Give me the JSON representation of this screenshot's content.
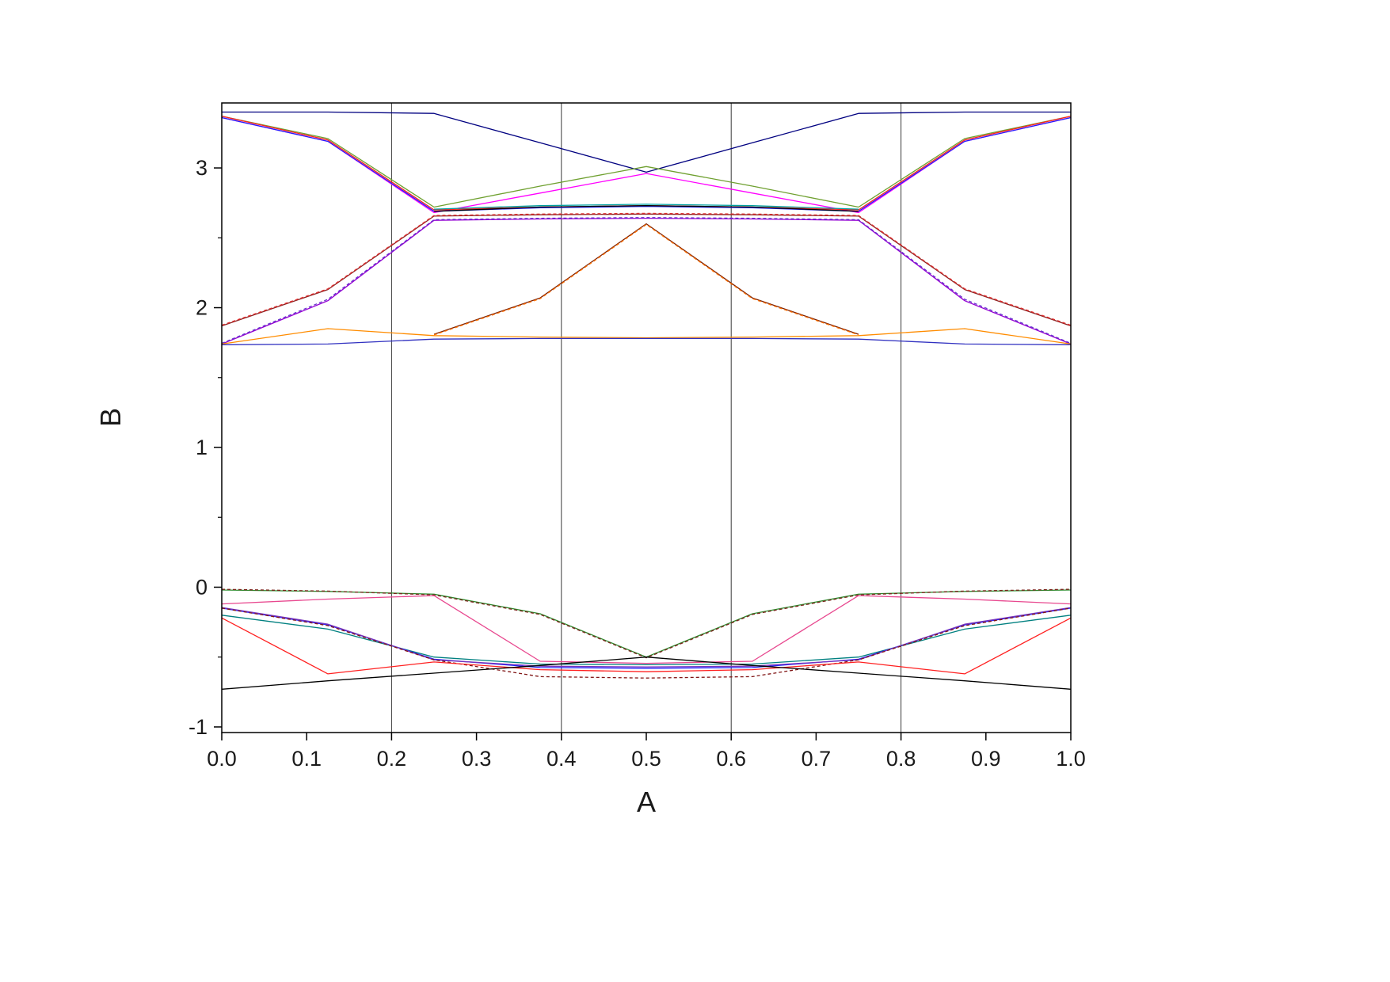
{
  "figure": {
    "background": "#ffffff"
  },
  "chart_data": {
    "type": "line",
    "title": "",
    "xlabel": "A",
    "ylabel": "B",
    "xlim": [
      0.0,
      1.0
    ],
    "ylim": [
      -1.04,
      3.465
    ],
    "x_ticks": [
      0.0,
      0.1,
      0.2,
      0.3,
      0.4,
      0.5,
      0.6,
      0.7,
      0.8,
      0.9,
      1.0
    ],
    "x_tick_labels": [
      "0.0",
      "0.1",
      "0.2",
      "0.3",
      "0.4",
      "0.5",
      "0.6",
      "0.7",
      "0.8",
      "0.9",
      "1.0"
    ],
    "y_ticks": [
      -1,
      0,
      1,
      2,
      3
    ],
    "y_tick_labels": [
      "-1",
      "0",
      "1",
      "2",
      "3"
    ],
    "y_minor_ticks": [
      -0.5,
      0.5,
      1.5,
      2.5
    ],
    "gridlines_x": [
      0.2,
      0.4,
      0.6,
      0.8
    ],
    "grid_color": "#3a3a3a",
    "frame_color": "#000000",
    "legend": "none",
    "series": [
      {
        "name": "navy-top",
        "color": "#000080",
        "dash": false,
        "x": [
          0,
          0.125,
          0.25,
          0.375,
          0.5,
          0.625,
          0.75,
          0.875,
          1
        ],
        "y": [
          3.4,
          3.4,
          3.39,
          3.18,
          2.97,
          3.18,
          3.39,
          3.4,
          3.4
        ]
      },
      {
        "name": "green-upper-peak",
        "color": "#6fa030",
        "dash": false,
        "x": [
          0,
          0.125,
          0.25,
          0.375,
          0.5,
          0.625,
          0.75,
          0.875,
          1
        ],
        "y": [
          3.37,
          3.21,
          2.72,
          2.87,
          3.01,
          2.87,
          2.72,
          3.21,
          3.37
        ]
      },
      {
        "name": "magenta-upper-peak",
        "color": "#ff00ff",
        "dash": false,
        "x": [
          0,
          0.125,
          0.25,
          0.375,
          0.5,
          0.625,
          0.75,
          0.875,
          1
        ],
        "y": [
          3.36,
          3.19,
          2.68,
          2.82,
          2.96,
          2.82,
          2.68,
          3.19,
          3.36
        ]
      },
      {
        "name": "red-upper",
        "color": "#ff2020",
        "dash": false,
        "x": [
          0,
          0.125,
          0.25,
          0.375,
          0.5,
          0.625,
          0.75,
          0.875,
          1
        ],
        "y": [
          3.37,
          3.2,
          2.7,
          2.72,
          2.73,
          2.72,
          2.7,
          3.2,
          3.37
        ]
      },
      {
        "name": "blue-upper",
        "color": "#2020ff",
        "dash": false,
        "x": [
          0,
          0.125,
          0.25,
          0.375,
          0.5,
          0.625,
          0.75,
          0.875,
          1
        ],
        "y": [
          3.36,
          3.19,
          2.69,
          2.715,
          2.725,
          2.715,
          2.69,
          3.19,
          3.36
        ]
      },
      {
        "name": "cyan-mid-arc",
        "color": "#00a0a0",
        "dash": false,
        "x": [
          0.25,
          0.375,
          0.5,
          0.625,
          0.75
        ],
        "y": [
          2.705,
          2.73,
          2.74,
          2.73,
          2.705
        ]
      },
      {
        "name": "black-mid-arc",
        "color": "#000000",
        "dash": false,
        "x": [
          0.25,
          0.375,
          0.5,
          0.625,
          0.75
        ],
        "y": [
          2.69,
          2.72,
          2.73,
          2.72,
          2.69
        ]
      },
      {
        "name": "wine-rise",
        "color": "#8b2020",
        "dash": false,
        "x": [
          0,
          0.125,
          0.25,
          0.375,
          0.5,
          0.625,
          0.75,
          0.875,
          1
        ],
        "y": [
          1.87,
          2.13,
          2.655,
          2.665,
          2.67,
          2.665,
          2.655,
          2.13,
          1.87
        ]
      },
      {
        "name": "red-rise-pair",
        "color": "#e03030",
        "dash": true,
        "x": [
          0,
          0.125,
          0.25,
          0.375,
          0.5,
          0.625,
          0.75,
          0.875,
          1
        ],
        "y": [
          1.875,
          2.135,
          2.66,
          2.67,
          2.675,
          2.67,
          2.66,
          2.135,
          1.875
        ]
      },
      {
        "name": "violet-rise",
        "color": "#9400d3",
        "dash": false,
        "x": [
          0,
          0.125,
          0.25,
          0.375,
          0.5,
          0.625,
          0.75,
          0.875,
          1
        ],
        "y": [
          1.74,
          2.05,
          2.625,
          2.635,
          2.64,
          2.635,
          2.625,
          2.05,
          1.74
        ]
      },
      {
        "name": "purple-rise-pair",
        "color": "#6633cc",
        "dash": true,
        "x": [
          0,
          0.125,
          0.25,
          0.375,
          0.5,
          0.625,
          0.75,
          0.875,
          1
        ],
        "y": [
          1.745,
          2.06,
          2.63,
          2.64,
          2.645,
          2.64,
          2.63,
          2.06,
          1.745
        ]
      },
      {
        "name": "orange-flat",
        "color": "#ff8c00",
        "dash": false,
        "x": [
          0,
          0.125,
          0.25,
          0.375,
          0.5,
          0.625,
          0.75,
          0.875,
          1
        ],
        "y": [
          1.74,
          1.85,
          1.8,
          1.79,
          1.785,
          1.79,
          1.8,
          1.85,
          1.74
        ]
      },
      {
        "name": "blue-flat",
        "color": "#3030c0",
        "dash": false,
        "x": [
          0,
          0.125,
          0.25,
          0.375,
          0.5,
          0.625,
          0.75,
          0.875,
          1
        ],
        "y": [
          1.735,
          1.74,
          1.775,
          1.78,
          1.78,
          1.78,
          1.775,
          1.74,
          1.735
        ]
      },
      {
        "name": "wine-tent",
        "color": "#7b2000",
        "dash": false,
        "x": [
          0.25,
          0.375,
          0.5,
          0.625,
          0.75
        ],
        "y": [
          1.81,
          2.07,
          2.6,
          2.07,
          1.81
        ]
      },
      {
        "name": "orange-tent-pair",
        "color": "#ff7000",
        "dash": true,
        "x": [
          0.25,
          0.375,
          0.5,
          0.625,
          0.75
        ],
        "y": [
          1.805,
          2.065,
          2.595,
          2.065,
          1.805
        ]
      },
      {
        "name": "green-v",
        "color": "#2e8b2e",
        "dash": false,
        "x": [
          0,
          0.125,
          0.25,
          0.375,
          0.5,
          0.625,
          0.75,
          0.875,
          1
        ],
        "y": [
          -0.02,
          -0.03,
          -0.05,
          -0.19,
          -0.5,
          -0.19,
          -0.05,
          -0.03,
          -0.02
        ]
      },
      {
        "name": "wine-v-pair",
        "color": "#7b241c",
        "dash": true,
        "x": [
          0,
          0.125,
          0.25,
          0.375,
          0.5,
          0.625,
          0.75,
          0.875,
          1
        ],
        "y": [
          -0.015,
          -0.028,
          -0.055,
          -0.195,
          -0.505,
          -0.195,
          -0.055,
          -0.028,
          -0.015
        ]
      },
      {
        "name": "magenta-lower",
        "color": "#e8488f",
        "dash": false,
        "x": [
          0,
          0.125,
          0.25,
          0.375,
          0.5,
          0.625,
          0.75,
          0.875,
          1
        ],
        "y": [
          -0.12,
          -0.085,
          -0.06,
          -0.53,
          -0.545,
          -0.53,
          -0.06,
          -0.085,
          -0.12
        ]
      },
      {
        "name": "teal-lower",
        "color": "#008080",
        "dash": false,
        "x": [
          0,
          0.125,
          0.25,
          0.375,
          0.5,
          0.625,
          0.75,
          0.875,
          1
        ],
        "y": [
          -0.2,
          -0.3,
          -0.5,
          -0.55,
          -0.555,
          -0.55,
          -0.5,
          -0.3,
          -0.2
        ]
      },
      {
        "name": "blue-lower",
        "color": "#2020ff",
        "dash": false,
        "x": [
          0,
          0.125,
          0.25,
          0.375,
          0.5,
          0.625,
          0.75,
          0.875,
          1
        ],
        "y": [
          -0.15,
          -0.27,
          -0.515,
          -0.575,
          -0.58,
          -0.575,
          -0.515,
          -0.27,
          -0.15
        ]
      },
      {
        "name": "purple-lower",
        "color": "#7733bb",
        "dash": false,
        "x": [
          0,
          0.125,
          0.25,
          0.375,
          0.5,
          0.625,
          0.75,
          0.875,
          1
        ],
        "y": [
          -0.145,
          -0.265,
          -0.52,
          -0.565,
          -0.57,
          -0.565,
          -0.52,
          -0.265,
          -0.145
        ]
      },
      {
        "name": "wine-band-dip",
        "color": "#801515",
        "dash": true,
        "x": [
          0,
          0.125,
          0.25,
          0.375,
          0.5,
          0.625,
          0.75,
          0.875,
          1
        ],
        "y": [
          -0.15,
          -0.275,
          -0.52,
          -0.64,
          -0.65,
          -0.64,
          -0.52,
          -0.275,
          -0.15
        ]
      },
      {
        "name": "red-lower",
        "color": "#ff2020",
        "dash": false,
        "x": [
          0,
          0.125,
          0.25,
          0.375,
          0.5,
          0.625,
          0.75,
          0.875,
          1
        ],
        "y": [
          -0.22,
          -0.62,
          -0.535,
          -0.59,
          -0.605,
          -0.59,
          -0.535,
          -0.62,
          -0.22
        ]
      },
      {
        "name": "black-lower",
        "color": "#000000",
        "dash": false,
        "x": [
          0,
          0.125,
          0.25,
          0.375,
          0.5,
          0.625,
          0.75,
          0.875,
          1
        ],
        "y": [
          -0.73,
          -0.67,
          -0.615,
          -0.56,
          -0.5,
          -0.56,
          -0.615,
          -0.67,
          -0.73
        ]
      }
    ]
  }
}
